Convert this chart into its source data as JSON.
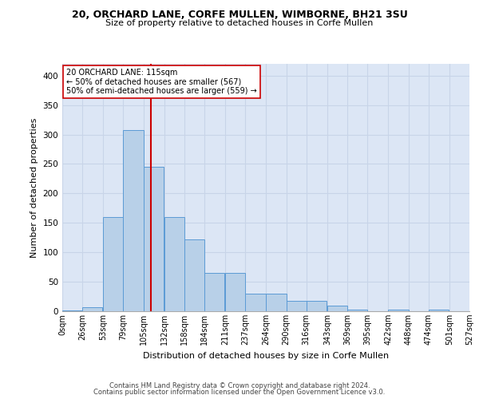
{
  "title1": "20, ORCHARD LANE, CORFE MULLEN, WIMBORNE, BH21 3SU",
  "title2": "Size of property relative to detached houses in Corfe Mullen",
  "xlabel": "Distribution of detached houses by size in Corfe Mullen",
  "ylabel": "Number of detached properties",
  "bin_labels": [
    "0sqm",
    "26sqm",
    "53sqm",
    "79sqm",
    "105sqm",
    "132sqm",
    "158sqm",
    "184sqm",
    "211sqm",
    "237sqm",
    "264sqm",
    "290sqm",
    "316sqm",
    "343sqm",
    "369sqm",
    "395sqm",
    "422sqm",
    "448sqm",
    "474sqm",
    "501sqm",
    "527sqm"
  ],
  "bin_edges": [
    0,
    26,
    53,
    79,
    105,
    132,
    158,
    184,
    211,
    237,
    264,
    290,
    316,
    343,
    369,
    395,
    422,
    448,
    474,
    501,
    527
  ],
  "bar_heights": [
    2,
    7,
    160,
    307,
    245,
    160,
    122,
    65,
    65,
    30,
    30,
    18,
    18,
    9,
    3,
    0,
    3,
    0,
    3,
    0,
    0
  ],
  "bar_color": "#b8d0e8",
  "bar_edge_color": "#5b9bd5",
  "property_line_x": 115,
  "annotation_line1": "20 ORCHARD LANE: 115sqm",
  "annotation_line2": "← 50% of detached houses are smaller (567)",
  "annotation_line3": "50% of semi-detached houses are larger (559) →",
  "annotation_box_color": "#ffffff",
  "annotation_box_edge": "#cc0000",
  "vline_color": "#cc0000",
  "grid_color": "#c8d4e8",
  "background_color": "#dce6f5",
  "ylim": [
    0,
    420
  ],
  "yticks": [
    0,
    50,
    100,
    150,
    200,
    250,
    300,
    350,
    400
  ],
  "footnote1": "Contains HM Land Registry data © Crown copyright and database right 2024.",
  "footnote2": "Contains public sector information licensed under the Open Government Licence v3.0."
}
